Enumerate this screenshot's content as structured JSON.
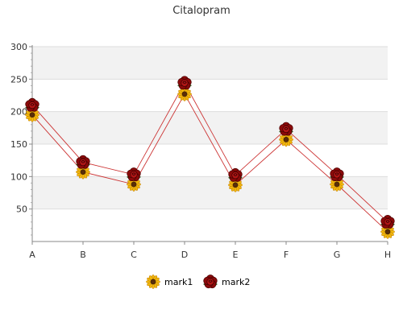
{
  "chart_data": {
    "type": "line",
    "title": "Citalopram",
    "xlabel": "",
    "ylabel": "",
    "categories": [
      "A",
      "B",
      "C",
      "D",
      "E",
      "F",
      "G",
      "H"
    ],
    "ylim": [
      0,
      300
    ],
    "yticks": [
      50,
      100,
      150,
      200,
      250,
      300
    ],
    "grid": true,
    "legend_position": "bottom",
    "series": [
      {
        "name": "mark1",
        "values": [
          195,
          107,
          88,
          227,
          87,
          157,
          88,
          15
        ],
        "marker": "sunflower-icon",
        "color": "#d9a016"
      },
      {
        "name": "mark2",
        "values": [
          210,
          122,
          103,
          244,
          102,
          173,
          103,
          30
        ],
        "marker": "rose-icon",
        "color": "#8b0000"
      }
    ],
    "line_color": "#cc3333"
  }
}
